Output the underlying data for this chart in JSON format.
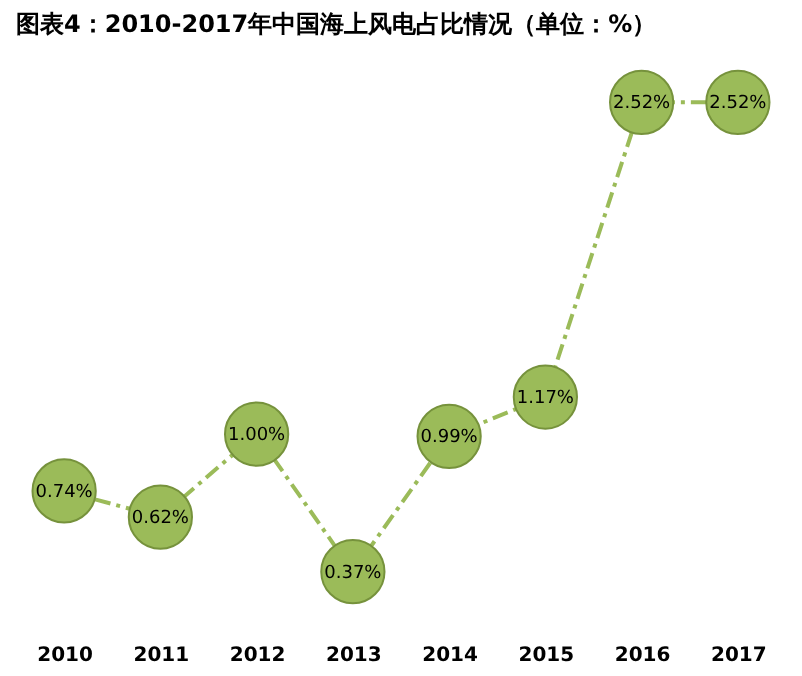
{
  "chart_data": {
    "type": "line",
    "title": "图表4：2010-2017年中国海上风电占比情况（单位：%）",
    "categories": [
      "2010",
      "2011",
      "2012",
      "2013",
      "2014",
      "2015",
      "2016",
      "2017"
    ],
    "series": [
      {
        "color": "#9bbb59",
        "values": [
          0.74,
          0.62,
          1.0,
          0.37,
          0.99,
          1.17,
          2.52,
          2.52
        ],
        "value_labels": [
          "0.74%",
          "0.62%",
          "1.00%",
          "0.37%",
          "0.99%",
          "1.17%",
          "2.52%",
          "2.52%"
        ]
      }
    ],
    "marker": "circle",
    "line_style": "dashed",
    "grid": false,
    "tick_labels": "x"
  }
}
